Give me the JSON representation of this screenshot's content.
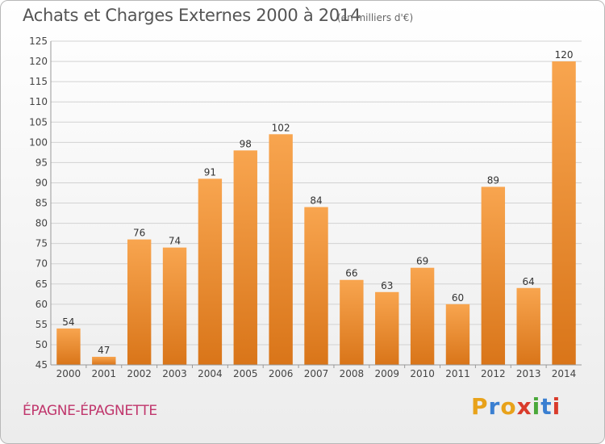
{
  "header": {
    "title": "Achats et Charges Externes 2000 à 2014",
    "unit": "(en milliers d'€)"
  },
  "footer": {
    "commune": "ÉPAGNE-ÉPAGNETTE",
    "logo": [
      "P",
      "r",
      "o",
      "x",
      "i",
      "t",
      "i"
    ]
  },
  "colors": {
    "bar_top": "#f8a54f",
    "bar_bottom": "#d97519",
    "commune": "#c0366c",
    "logo": [
      "#e8a21a",
      "#3a7fd1",
      "#e8a21a",
      "#d93b2b",
      "#4aa83a",
      "#3a7fd1",
      "#d93b2b"
    ]
  },
  "chart_data": {
    "type": "bar",
    "title": "Achats et Charges Externes 2000 à 2014",
    "subtitle": "(en milliers d'€)",
    "categories": [
      "2000",
      "2001",
      "2002",
      "2003",
      "2004",
      "2005",
      "2006",
      "2007",
      "2008",
      "2009",
      "2010",
      "2011",
      "2012",
      "2013",
      "2014"
    ],
    "values": [
      54,
      47,
      76,
      74,
      91,
      98,
      102,
      84,
      66,
      63,
      69,
      60,
      89,
      64,
      120
    ],
    "ylim": [
      45,
      125
    ],
    "yticks": [
      45,
      50,
      55,
      60,
      65,
      70,
      75,
      80,
      85,
      90,
      95,
      100,
      105,
      110,
      115,
      120,
      125
    ],
    "grid": true,
    "legend": "none"
  }
}
